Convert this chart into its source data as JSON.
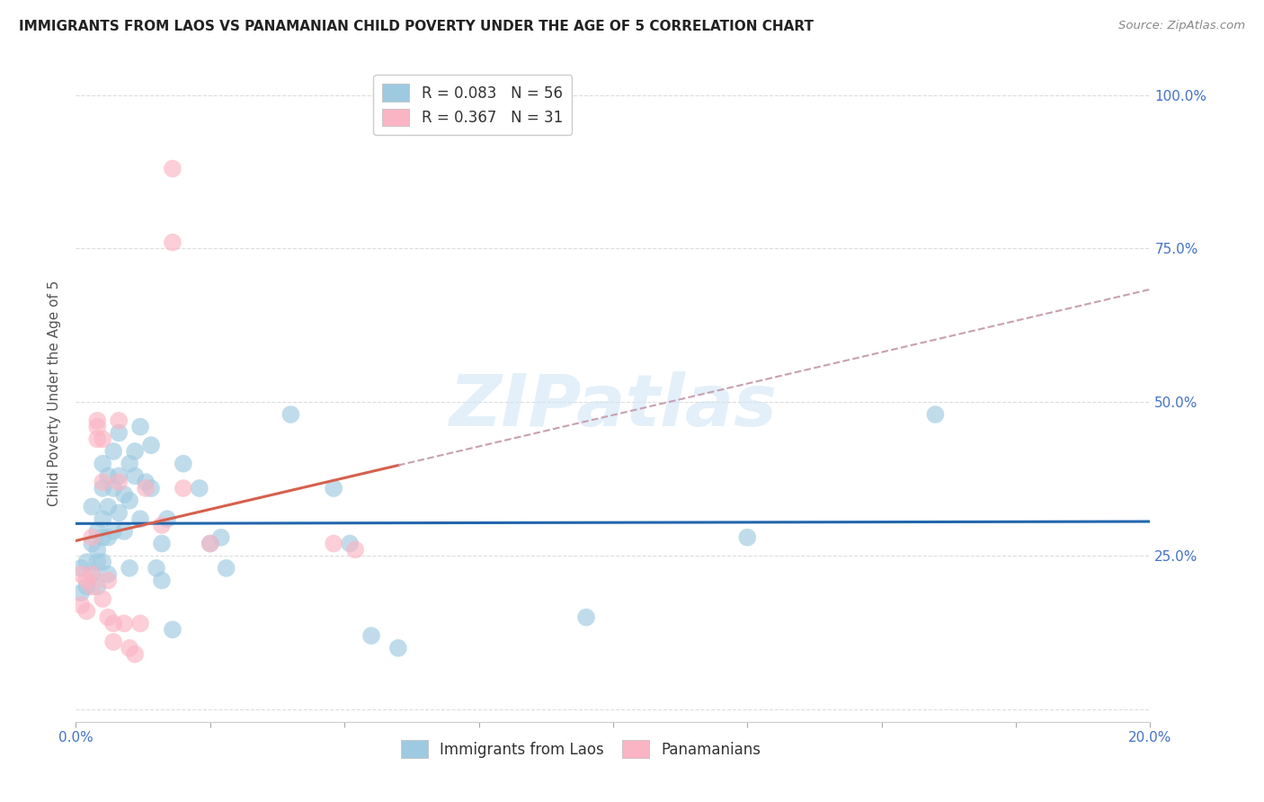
{
  "title": "IMMIGRANTS FROM LAOS VS PANAMANIAN CHILD POVERTY UNDER THE AGE OF 5 CORRELATION CHART",
  "source": "Source: ZipAtlas.com",
  "ylabel": "Child Poverty Under the Age of 5",
  "xlim": [
    0.0,
    0.2
  ],
  "ylim": [
    -0.02,
    1.05
  ],
  "yticks": [
    0.0,
    0.25,
    0.5,
    0.75,
    1.0
  ],
  "ytick_labels": [
    "",
    "25.0%",
    "50.0%",
    "75.0%",
    "100.0%"
  ],
  "xticks": [
    0.0,
    0.025,
    0.05,
    0.075,
    0.1,
    0.125,
    0.15,
    0.175,
    0.2
  ],
  "xtick_labels": [
    "0.0%",
    "",
    "",
    "",
    "",
    "",
    "",
    "",
    "20.0%"
  ],
  "background_color": "#ffffff",
  "grid_color": "#dddddd",
  "watermark": "ZIPatlas",
  "legend_r1": "R = 0.083",
  "legend_n1": "N = 56",
  "legend_r2": "R = 0.367",
  "legend_n2": "N = 31",
  "color_blue": "#9ecae1",
  "color_pink": "#fbb4c4",
  "trendline_blue": "#2166ac",
  "trendline_pink": "#d6604d",
  "trendline_dash_color": "#c8a0b0",
  "laos_x": [
    0.001,
    0.001,
    0.002,
    0.002,
    0.003,
    0.003,
    0.003,
    0.004,
    0.004,
    0.004,
    0.004,
    0.005,
    0.005,
    0.005,
    0.005,
    0.005,
    0.006,
    0.006,
    0.006,
    0.006,
    0.007,
    0.007,
    0.007,
    0.008,
    0.008,
    0.008,
    0.009,
    0.009,
    0.01,
    0.01,
    0.01,
    0.011,
    0.011,
    0.012,
    0.012,
    0.013,
    0.014,
    0.014,
    0.015,
    0.016,
    0.016,
    0.017,
    0.018,
    0.02,
    0.023,
    0.025,
    0.027,
    0.028,
    0.04,
    0.048,
    0.051,
    0.055,
    0.06,
    0.095,
    0.125,
    0.16
  ],
  "laos_y": [
    0.23,
    0.19,
    0.24,
    0.2,
    0.33,
    0.27,
    0.22,
    0.29,
    0.26,
    0.24,
    0.2,
    0.4,
    0.36,
    0.31,
    0.28,
    0.24,
    0.38,
    0.33,
    0.28,
    0.22,
    0.42,
    0.36,
    0.29,
    0.45,
    0.38,
    0.32,
    0.35,
    0.29,
    0.4,
    0.34,
    0.23,
    0.42,
    0.38,
    0.46,
    0.31,
    0.37,
    0.43,
    0.36,
    0.23,
    0.27,
    0.21,
    0.31,
    0.13,
    0.4,
    0.36,
    0.27,
    0.28,
    0.23,
    0.48,
    0.36,
    0.27,
    0.12,
    0.1,
    0.15,
    0.28,
    0.48
  ],
  "panama_x": [
    0.001,
    0.001,
    0.002,
    0.002,
    0.003,
    0.003,
    0.004,
    0.004,
    0.005,
    0.005,
    0.006,
    0.007,
    0.007,
    0.008,
    0.008,
    0.009,
    0.01,
    0.011,
    0.012,
    0.013,
    0.016,
    0.018,
    0.018,
    0.02,
    0.025,
    0.048,
    0.052,
    0.003,
    0.004,
    0.005,
    0.006
  ],
  "panama_y": [
    0.22,
    0.17,
    0.21,
    0.16,
    0.28,
    0.22,
    0.47,
    0.44,
    0.37,
    0.18,
    0.21,
    0.14,
    0.11,
    0.47,
    0.37,
    0.14,
    0.1,
    0.09,
    0.14,
    0.36,
    0.3,
    0.88,
    0.76,
    0.36,
    0.27,
    0.27,
    0.26,
    0.2,
    0.46,
    0.44,
    0.15
  ],
  "trendline_blue_start_x": 0.0,
  "trendline_blue_end_x": 0.2,
  "trendline_pink_solid_start_x": 0.0,
  "trendline_pink_solid_end_x": 0.06,
  "trendline_pink_dash_start_x": 0.06,
  "trendline_pink_dash_end_x": 0.2
}
